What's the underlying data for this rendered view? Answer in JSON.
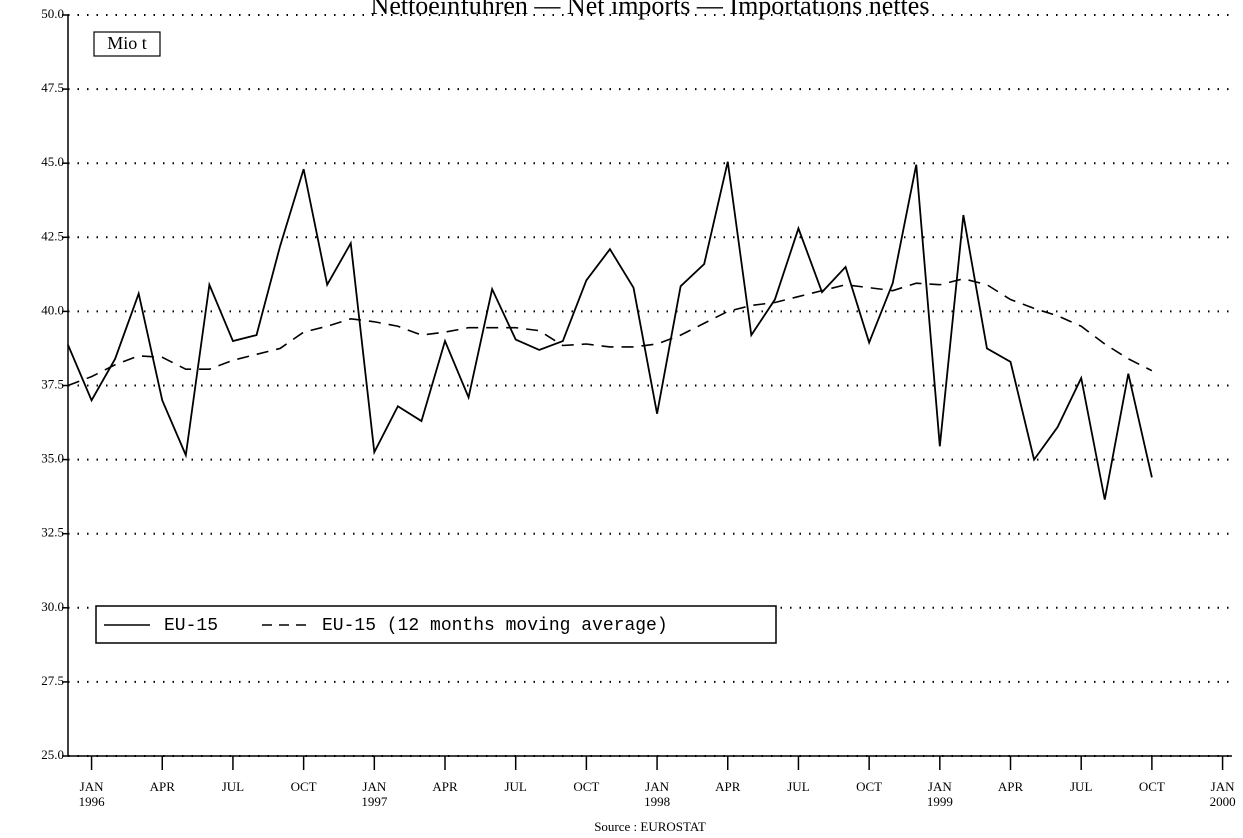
{
  "chart_data": {
    "type": "line",
    "title": "Nettoeinfuhren — Net imports — Importations nettes",
    "unit_label": "Mio t",
    "source": "Source : EUROSTAT",
    "x": [
      0,
      1,
      2,
      3,
      4,
      5,
      6,
      7,
      8,
      9,
      10,
      11,
      12,
      13,
      14,
      15,
      16,
      17,
      18,
      19,
      20,
      21,
      22,
      23,
      24,
      25,
      26,
      27,
      28,
      29,
      30,
      31,
      32,
      33,
      34,
      35,
      36,
      37,
      38,
      39,
      40,
      41,
      42,
      43,
      44,
      45,
      46
    ],
    "series": [
      {
        "name": "EU-15",
        "color": "#000000",
        "dash": false,
        "values": [
          38.87,
          37.0,
          38.4,
          40.6,
          37.0,
          35.15,
          40.9,
          39.0,
          39.2,
          42.2,
          44.8,
          40.9,
          42.3,
          35.25,
          36.8,
          36.3,
          39.0,
          37.1,
          40.75,
          39.05,
          38.7,
          39.0,
          41.05,
          42.1,
          40.8,
          36.55,
          40.85,
          41.6,
          45.05,
          39.2,
          40.4,
          42.8,
          40.65,
          41.5,
          38.95,
          40.95,
          44.95,
          35.45,
          43.25,
          38.75,
          38.3,
          35.0,
          36.1,
          37.75,
          33.65,
          37.9,
          34.4
        ]
      },
      {
        "name": "EU-15 (12 months moving average)",
        "color": "#000000",
        "dash": true,
        "values": [
          37.5,
          37.8,
          38.2,
          38.5,
          38.45,
          38.05,
          38.05,
          38.35,
          38.55,
          38.75,
          39.3,
          39.5,
          39.75,
          39.65,
          39.5,
          39.2,
          39.3,
          39.45,
          39.45,
          39.45,
          39.35,
          38.85,
          38.9,
          38.8,
          38.8,
          38.9,
          39.2,
          39.6,
          40.0,
          40.2,
          40.3,
          40.5,
          40.7,
          40.9,
          40.8,
          40.7,
          40.95,
          40.9,
          41.1,
          40.9,
          40.4,
          40.1,
          39.85,
          39.5,
          38.9,
          38.4,
          38.0
        ]
      }
    ],
    "xlim": [
      0,
      49.4
    ],
    "xticks": [
      {
        "value": 1,
        "label": "JAN"
      },
      {
        "value": 4,
        "label": "APR"
      },
      {
        "value": 7,
        "label": "JUL"
      },
      {
        "value": 10,
        "label": "OCT"
      },
      {
        "value": 13,
        "label": "JAN"
      },
      {
        "value": 16,
        "label": "APR"
      },
      {
        "value": 19,
        "label": "JUL"
      },
      {
        "value": 22,
        "label": "OCT"
      },
      {
        "value": 25,
        "label": "JAN"
      },
      {
        "value": 28,
        "label": "APR"
      },
      {
        "value": 31,
        "label": "JUL"
      },
      {
        "value": 34,
        "label": "OCT"
      },
      {
        "value": 37,
        "label": "JAN"
      },
      {
        "value": 40,
        "label": "APR"
      },
      {
        "value": 43,
        "label": "JUL"
      },
      {
        "value": 46,
        "label": "OCT"
      },
      {
        "value": 49,
        "label": "JAN"
      }
    ],
    "year_labels": [
      {
        "value": 1,
        "label": "1996"
      },
      {
        "value": 13,
        "label": "1997"
      },
      {
        "value": 25,
        "label": "1998"
      },
      {
        "value": 37,
        "label": "1999"
      },
      {
        "value": 49,
        "label": "2000"
      }
    ],
    "ylim": [
      25,
      50
    ],
    "yticks": [
      {
        "value": 25,
        "label": "25.0"
      },
      {
        "value": 27.5,
        "label": "27.5"
      },
      {
        "value": 30,
        "label": "30.0"
      },
      {
        "value": 32.5,
        "label": "32.5"
      },
      {
        "value": 35,
        "label": "35.0"
      },
      {
        "value": 37.5,
        "label": "37.5"
      },
      {
        "value": 40,
        "label": "40.0"
      },
      {
        "value": 42.5,
        "label": "42.5"
      },
      {
        "value": 45,
        "label": "45.0"
      },
      {
        "value": 47.5,
        "label": "47.5"
      },
      {
        "value": 50,
        "label": "50.0"
      }
    ],
    "grid": true
  }
}
